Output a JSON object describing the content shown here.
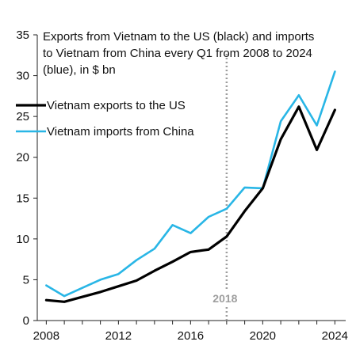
{
  "chart_data": {
    "type": "line",
    "title_lines": [
      "Exports from Vietnam to the US (black) and imports",
      "to Vietnam from China every Q1 from 2008 to 2024",
      "(blue), in $ bn"
    ],
    "xlabel": "",
    "ylabel": "",
    "x": [
      2008,
      2009,
      2010,
      2011,
      2012,
      2013,
      2014,
      2015,
      2016,
      2017,
      2018,
      2019,
      2020,
      2021,
      2022,
      2023,
      2024
    ],
    "xlim": [
      2007.5,
      2024.6
    ],
    "ylim": [
      0,
      35
    ],
    "x_ticks": [
      2008,
      2012,
      2016,
      2020,
      2024
    ],
    "y_ticks": [
      0,
      5,
      10,
      15,
      20,
      25,
      30,
      35
    ],
    "grid": false,
    "legend_position": "top-left",
    "series": [
      {
        "name": "Vietnam exports to the US",
        "color": "#000000",
        "values": [
          2.5,
          2.3,
          2.9,
          3.5,
          4.2,
          4.9,
          6.1,
          7.2,
          8.4,
          8.7,
          10.3,
          13.4,
          16.2,
          22.2,
          26.2,
          20.9,
          25.8
        ]
      },
      {
        "name": "Vietnam imports from China",
        "color": "#29b6e6",
        "values": [
          4.3,
          3.0,
          4.0,
          5.0,
          5.7,
          7.4,
          8.8,
          11.7,
          10.7,
          12.7,
          13.7,
          16.3,
          16.2,
          24.4,
          27.6,
          23.9,
          30.5
        ]
      }
    ],
    "annotations": [
      {
        "text": "2018",
        "x": 2018,
        "color": "#9e9e9e"
      }
    ]
  }
}
